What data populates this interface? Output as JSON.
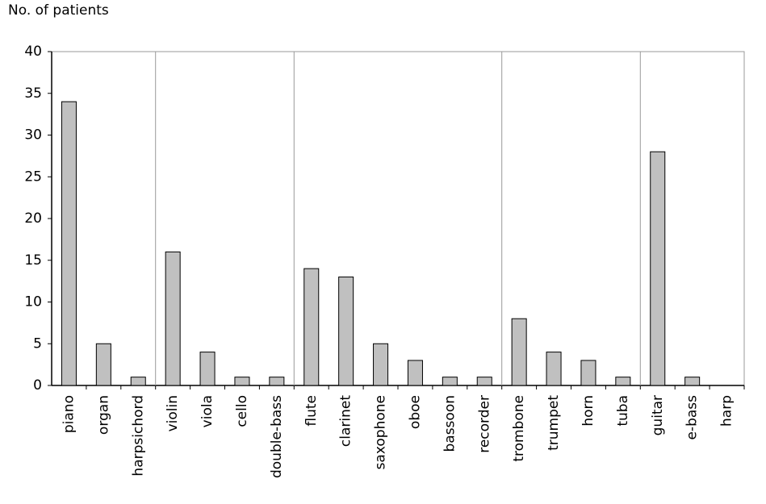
{
  "chart_data": {
    "type": "bar",
    "y_label": "No. of patients",
    "categories": [
      "piano",
      "organ",
      "harpsichord",
      "violin",
      "viola",
      "cello",
      "double-bass",
      "flute",
      "clarinet",
      "saxophone",
      "oboe",
      "bassoon",
      "recorder",
      "trombone",
      "trumpet",
      "horn",
      "tuba",
      "guitar",
      "e-bass",
      "harp"
    ],
    "values": [
      34,
      5,
      1,
      16,
      4,
      1,
      1,
      14,
      13,
      5,
      3,
      1,
      1,
      8,
      4,
      3,
      1,
      28,
      1,
      0
    ],
    "color": "#c0c0c0",
    "group_sizes": [
      3,
      4,
      6,
      4,
      3
    ],
    "ylim": [
      0,
      40
    ],
    "yticks": [
      0,
      5,
      10,
      15,
      20,
      25,
      30,
      35,
      40
    ],
    "grid": false
  }
}
